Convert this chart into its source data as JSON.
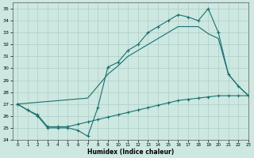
{
  "xlabel": "Humidex (Indice chaleur)",
  "xlim": [
    -0.5,
    23
  ],
  "ylim": [
    24,
    35.5
  ],
  "yticks": [
    24,
    25,
    26,
    27,
    28,
    29,
    30,
    31,
    32,
    33,
    34,
    35
  ],
  "xticks": [
    0,
    1,
    2,
    3,
    4,
    5,
    6,
    7,
    8,
    9,
    10,
    11,
    12,
    13,
    14,
    15,
    16,
    17,
    18,
    19,
    20,
    21,
    22,
    23
  ],
  "bg_color": "#cce8e0",
  "grid_color": "#b0ccc8",
  "line_color": "#1a7070",
  "line1_x": [
    0,
    1,
    2,
    3,
    4,
    5,
    6,
    7,
    8,
    9,
    10,
    11,
    12,
    13,
    14,
    15,
    16,
    17,
    18,
    19,
    20,
    21,
    22,
    23
  ],
  "line1_y": [
    27.0,
    26.5,
    26.0,
    25.0,
    25.0,
    25.0,
    24.8,
    24.3,
    26.7,
    30.1,
    30.5,
    31.5,
    32.0,
    33.0,
    33.5,
    34.0,
    34.5,
    34.3,
    34.0,
    35.0,
    33.0,
    29.5,
    28.5,
    27.7
  ],
  "line2_x": [
    0,
    7,
    8,
    9,
    10,
    11,
    12,
    13,
    14,
    15,
    16,
    17,
    18,
    19,
    20,
    21,
    22,
    23
  ],
  "line2_y": [
    27.0,
    27.5,
    28.5,
    29.5,
    30.2,
    31.0,
    31.5,
    32.0,
    32.5,
    33.0,
    33.5,
    33.5,
    33.5,
    32.9,
    32.5,
    29.5,
    28.5,
    27.7
  ],
  "line3_x": [
    0,
    1,
    2,
    3,
    4,
    5,
    6,
    7,
    8,
    9,
    10,
    11,
    12,
    13,
    14,
    15,
    16,
    17,
    18,
    19,
    20,
    21,
    22,
    23
  ],
  "line3_y": [
    27.0,
    26.5,
    26.1,
    25.1,
    25.1,
    25.1,
    25.3,
    25.5,
    25.7,
    25.9,
    26.1,
    26.3,
    26.5,
    26.7,
    26.9,
    27.1,
    27.3,
    27.4,
    27.5,
    27.6,
    27.7,
    27.7,
    27.7,
    27.7
  ]
}
